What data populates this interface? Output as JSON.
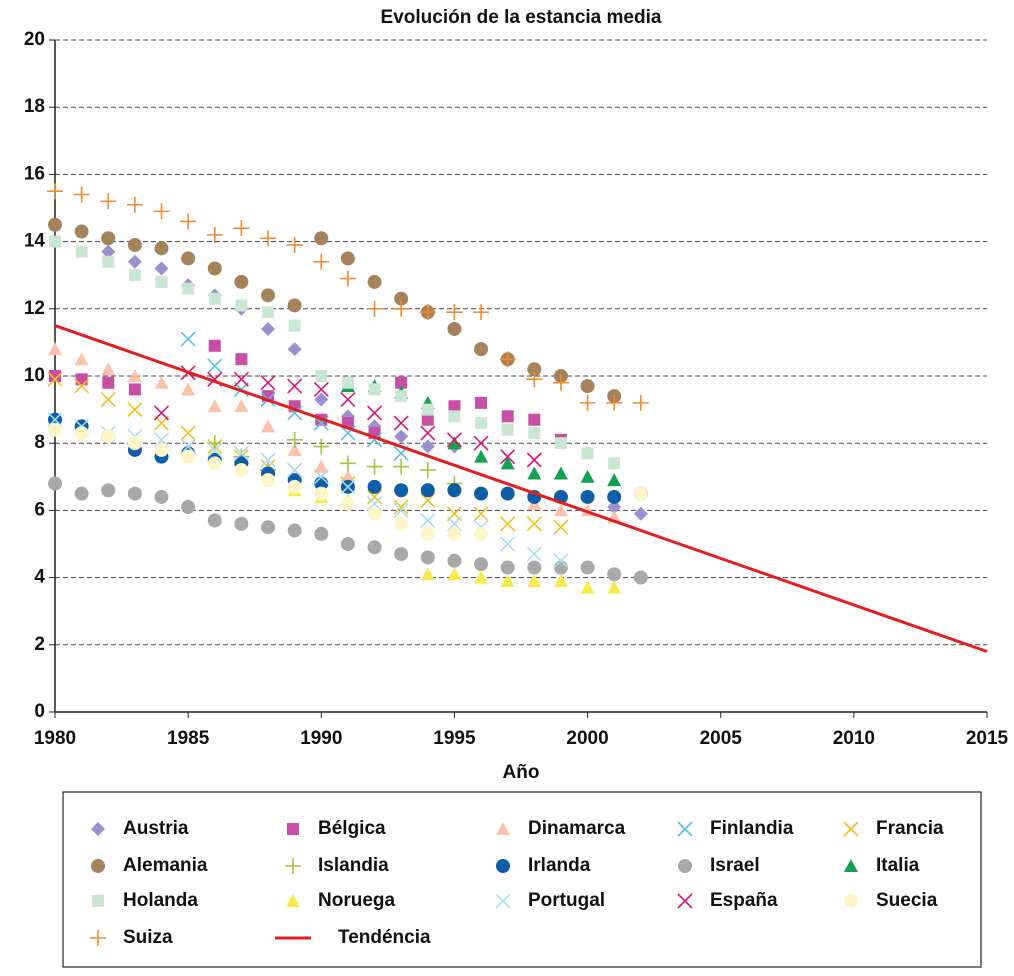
{
  "chart_data": {
    "type": "scatter",
    "title": "Evolución de la estancia media",
    "x_label": "Año",
    "x": [
      1980,
      1981,
      1982,
      1983,
      1984,
      1985,
      1986,
      1987,
      1988,
      1989,
      1990,
      1991,
      1992,
      1993,
      1994,
      1995,
      1996,
      1997,
      1998,
      1999,
      2000,
      2001,
      2002
    ],
    "xlim": [
      1980,
      2015
    ],
    "xticks": [
      1980,
      1985,
      1990,
      1995,
      2000,
      2005,
      2010,
      2015
    ],
    "ylim": [
      0,
      20
    ],
    "yticks": [
      0,
      2,
      4,
      6,
      8,
      10,
      12,
      14,
      16,
      18,
      20
    ],
    "grid": true,
    "series": [
      {
        "name": "Austria",
        "marker": "diamond",
        "color": "#9b8fcf",
        "values": [
          null,
          null,
          13.7,
          13.4,
          13.2,
          12.7,
          12.4,
          12.0,
          11.4,
          10.8,
          9.3,
          8.8,
          8.5,
          8.2,
          7.9,
          7.9,
          null,
          null,
          null,
          null,
          null,
          6.1,
          5.9
        ]
      },
      {
        "name": "Bélgica",
        "marker": "square",
        "color": "#c64ea5",
        "values": [
          10.0,
          9.9,
          9.8,
          9.6,
          null,
          null,
          10.9,
          10.5,
          9.4,
          9.1,
          8.7,
          8.6,
          8.3,
          9.8,
          8.7,
          9.1,
          9.2,
          8.8,
          8.7,
          8.1,
          null,
          null,
          null
        ]
      },
      {
        "name": "Dinamarca",
        "marker": "triangle",
        "color": "#f9c3ab",
        "values": [
          10.8,
          10.5,
          10.2,
          10.0,
          9.8,
          9.6,
          9.1,
          9.1,
          8.5,
          7.8,
          7.3,
          7.0,
          null,
          null,
          null,
          null,
          null,
          null,
          6.2,
          6.0,
          6.0,
          5.8,
          null
        ]
      },
      {
        "name": "Finlandia",
        "marker": "x",
        "color": "#5bbde0",
        "values": [
          null,
          null,
          null,
          null,
          null,
          11.1,
          10.3,
          9.6,
          9.3,
          8.9,
          8.6,
          8.3,
          8.1,
          7.7,
          null,
          null,
          null,
          null,
          null,
          null,
          null,
          null,
          null
        ]
      },
      {
        "name": "Francia",
        "marker": "x",
        "color": "#f0c020",
        "values": [
          9.9,
          9.7,
          9.3,
          9.0,
          8.6,
          8.3,
          7.9,
          7.6,
          7.3,
          7.2,
          7.0,
          6.8,
          6.4,
          6.1,
          6.3,
          5.9,
          5.9,
          5.6,
          5.6,
          5.5,
          null,
          null,
          null
        ]
      },
      {
        "name": "Alemania",
        "marker": "circle",
        "color": "#a5835a",
        "values": [
          14.5,
          14.3,
          14.1,
          13.9,
          13.8,
          13.5,
          13.2,
          12.8,
          12.4,
          12.1,
          14.1,
          13.5,
          12.8,
          12.3,
          11.9,
          11.4,
          10.8,
          10.5,
          10.2,
          10.0,
          9.7,
          9.4,
          null
        ]
      },
      {
        "name": "Islandia",
        "marker": "plus",
        "color": "#a8c040",
        "values": [
          null,
          null,
          null,
          null,
          null,
          null,
          8.0,
          7.6,
          7.2,
          8.1,
          7.9,
          7.4,
          7.3,
          7.3,
          7.2,
          6.8,
          null,
          null,
          null,
          null,
          null,
          null,
          null
        ]
      },
      {
        "name": "Irlanda",
        "marker": "circle",
        "color": "#0d5ea6",
        "values": [
          8.7,
          8.5,
          8.2,
          7.8,
          7.6,
          7.7,
          7.5,
          7.4,
          7.1,
          6.9,
          6.8,
          6.7,
          6.7,
          6.6,
          6.6,
          6.6,
          6.5,
          6.5,
          6.4,
          6.4,
          6.4,
          6.4,
          6.5
        ]
      },
      {
        "name": "Israel",
        "marker": "circle",
        "color": "#a8a8a8",
        "values": [
          6.8,
          6.5,
          6.6,
          6.5,
          6.4,
          6.1,
          5.7,
          5.6,
          5.5,
          5.4,
          5.3,
          5.0,
          4.9,
          4.7,
          4.6,
          4.5,
          4.4,
          4.3,
          4.3,
          4.3,
          4.3,
          4.1,
          4.0
        ]
      },
      {
        "name": "Italia",
        "marker": "triangle",
        "color": "#13a050",
        "values": [
          null,
          null,
          null,
          null,
          null,
          null,
          null,
          null,
          null,
          null,
          null,
          9.7,
          9.7,
          9.5,
          9.2,
          8.0,
          7.6,
          7.4,
          7.1,
          7.1,
          7.0,
          6.9,
          null
        ]
      },
      {
        "name": "Holanda",
        "marker": "square",
        "color": "#c8e6d2",
        "values": [
          14.0,
          13.7,
          13.4,
          13.0,
          12.8,
          12.6,
          12.3,
          12.1,
          11.9,
          11.5,
          10.0,
          9.8,
          9.6,
          9.4,
          9.0,
          8.8,
          8.6,
          8.4,
          8.3,
          8.0,
          7.7,
          7.4,
          null
        ]
      },
      {
        "name": "Noruega",
        "marker": "triangle",
        "color": "#f8ea4a",
        "values": [
          null,
          null,
          null,
          null,
          null,
          null,
          null,
          null,
          null,
          6.6,
          6.4,
          6.3,
          null,
          null,
          4.1,
          4.1,
          4.0,
          3.9,
          3.9,
          3.9,
          3.7,
          3.7,
          null
        ]
      },
      {
        "name": "Portugal",
        "marker": "x",
        "color": "#a9dcf2",
        "values": [
          8.7,
          8.5,
          8.3,
          8.2,
          8.1,
          7.9,
          7.8,
          7.7,
          7.5,
          7.2,
          7.0,
          6.7,
          6.2,
          6.0,
          5.7,
          5.6,
          5.5,
          5.0,
          4.7,
          4.5,
          null,
          null,
          null
        ]
      },
      {
        "name": "España",
        "marker": "x",
        "color": "#d8147a",
        "values": [
          null,
          null,
          null,
          null,
          8.9,
          10.1,
          9.9,
          9.9,
          9.8,
          9.7,
          9.6,
          9.3,
          8.9,
          8.6,
          8.3,
          8.1,
          8.0,
          7.6,
          7.5,
          null,
          null,
          null,
          null
        ]
      },
      {
        "name": "Suecia",
        "marker": "circle",
        "color": "#fdf5c8",
        "values": [
          8.4,
          8.3,
          8.2,
          8.0,
          7.8,
          7.6,
          7.4,
          7.2,
          6.9,
          6.7,
          6.5,
          6.2,
          5.9,
          5.6,
          5.3,
          5.3,
          5.3,
          null,
          null,
          null,
          null,
          null,
          6.5
        ]
      },
      {
        "name": "Suiza",
        "marker": "plus",
        "color": "#f08a30",
        "values": [
          15.5,
          15.4,
          15.2,
          15.1,
          14.9,
          14.6,
          14.2,
          14.4,
          14.1,
          13.9,
          13.4,
          12.9,
          12.0,
          12.0,
          11.9,
          11.9,
          11.9,
          10.5,
          9.9,
          9.8,
          9.2,
          9.2,
          9.2
        ]
      },
      {
        "name": "Tendéncia",
        "marker": "line",
        "color": "#e02020",
        "x": [
          1980,
          2015
        ],
        "values": [
          11.5,
          1.8
        ]
      }
    ]
  }
}
